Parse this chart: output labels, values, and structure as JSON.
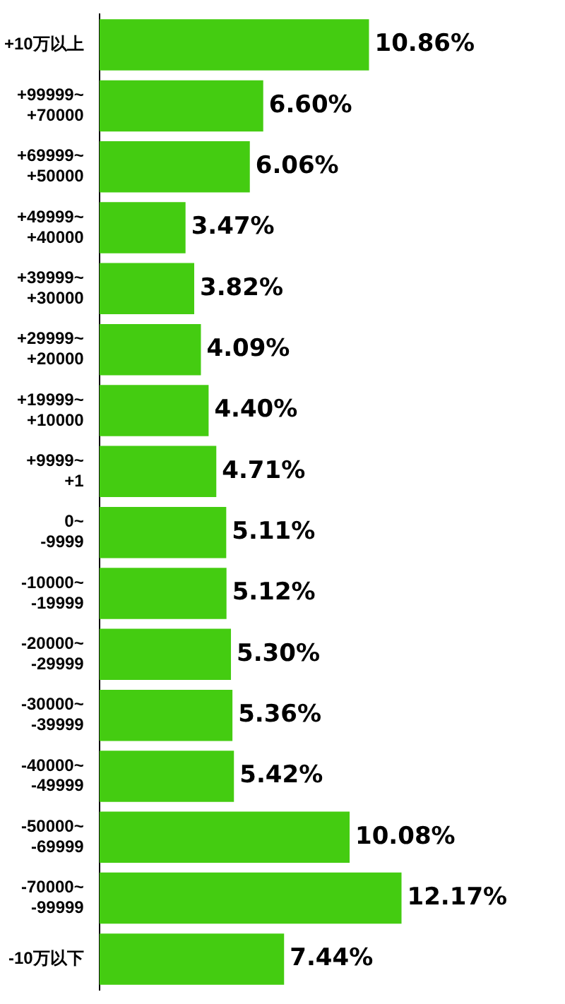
{
  "chart_data": {
    "type": "bar",
    "orientation": "horizontal",
    "categories": [
      "+10万以上",
      "+99999~+70000",
      "+69999~+50000",
      "+49999~+40000",
      "+39999~+30000",
      "+29999~+20000",
      "+19999~+10000",
      "+9999~+1",
      "0~-9999",
      "-10000~-19999",
      "-20000~-29999",
      "-30000~-39999",
      "-40000~-49999",
      "-50000~-69999",
      "-70000~-99999",
      "-10万以下"
    ],
    "values": [
      10.86,
      6.6,
      6.06,
      3.47,
      3.82,
      4.09,
      4.4,
      4.71,
      5.11,
      5.12,
      5.3,
      5.36,
      5.42,
      10.08,
      12.17,
      7.44
    ],
    "value_labels": [
      "10.86%",
      "6.60%",
      "6.06%",
      "3.47%",
      "3.82%",
      "4.09%",
      "4.40%",
      "4.71%",
      "5.11%",
      "5.12%",
      "5.30%",
      "5.36%",
      "5.42%",
      "10.08%",
      "12.17%",
      "7.44%"
    ],
    "color": "#44cc11",
    "legend": false,
    "tick_labels": "y"
  }
}
